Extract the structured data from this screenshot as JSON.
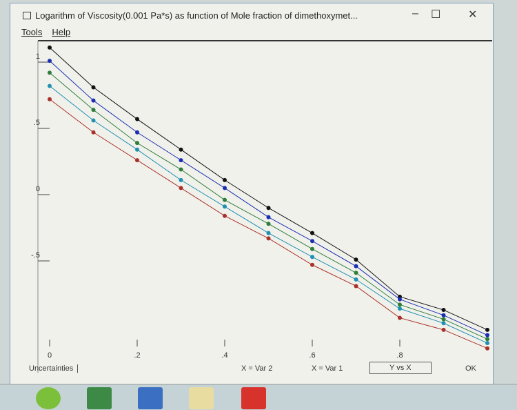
{
  "window": {
    "title": "Logarithm of Viscosity(0.001 Pa*s) as function of Mole fraction of dimethoxymet...",
    "minimize": "–",
    "maximize": "☐",
    "close": "✕"
  },
  "menu": [
    "Tools",
    "Help"
  ],
  "bottom": {
    "uncertainties": "Uncertainties",
    "x_var2": "X = Var 2",
    "x_var1": "X = Var 1",
    "y_vs_x": "Y vs X",
    "ok": "OK"
  },
  "taskbar": [
    "internet-explorer-icon",
    "excel-icon",
    "word-icon",
    "file-explorer-icon",
    "acrobat-icon"
  ],
  "chart_data": {
    "type": "line",
    "title": "Logarithm of Viscosity(0.001 Pa*s) as function of Mole fraction of dimethoxymet...",
    "xlim": [
      0,
      1
    ],
    "ylim": [
      -1.2,
      1.15
    ],
    "xticks": [
      0,
      0.2,
      0.4,
      0.6,
      0.8
    ],
    "xtick_labels": [
      "0",
      ".2",
      ".4",
      ".6",
      ".8"
    ],
    "yticks": [
      1,
      0.5,
      0,
      -0.5
    ],
    "ytick_labels": [
      "1",
      ".5",
      "0",
      "-.5"
    ],
    "grid": false,
    "x": [
      0,
      0.1,
      0.2,
      0.3,
      0.4,
      0.5,
      0.6,
      0.7,
      0.8,
      0.9,
      1.0
    ],
    "series": [
      {
        "color": "#111111",
        "values": [
          1.11,
          0.81,
          0.57,
          0.34,
          0.11,
          -0.1,
          -0.29,
          -0.49,
          -0.77,
          -0.87,
          -1.02
        ]
      },
      {
        "color": "#1a2fb0",
        "values": [
          1.01,
          0.71,
          0.47,
          0.26,
          0.05,
          -0.17,
          -0.35,
          -0.54,
          -0.79,
          -0.91,
          -1.06
        ]
      },
      {
        "color": "#2e7d3a",
        "values": [
          0.92,
          0.64,
          0.39,
          0.19,
          -0.04,
          -0.22,
          -0.41,
          -0.59,
          -0.83,
          -0.94,
          -1.09
        ]
      },
      {
        "color": "#1f90b0",
        "values": [
          0.82,
          0.56,
          0.34,
          0.11,
          -0.09,
          -0.29,
          -0.47,
          -0.64,
          -0.86,
          -0.97,
          -1.12
        ]
      },
      {
        "color": "#a8322a",
        "values": [
          0.72,
          0.47,
          0.26,
          0.05,
          -0.16,
          -0.33,
          -0.53,
          -0.69,
          -0.93,
          -1.02,
          -1.16
        ]
      }
    ]
  }
}
